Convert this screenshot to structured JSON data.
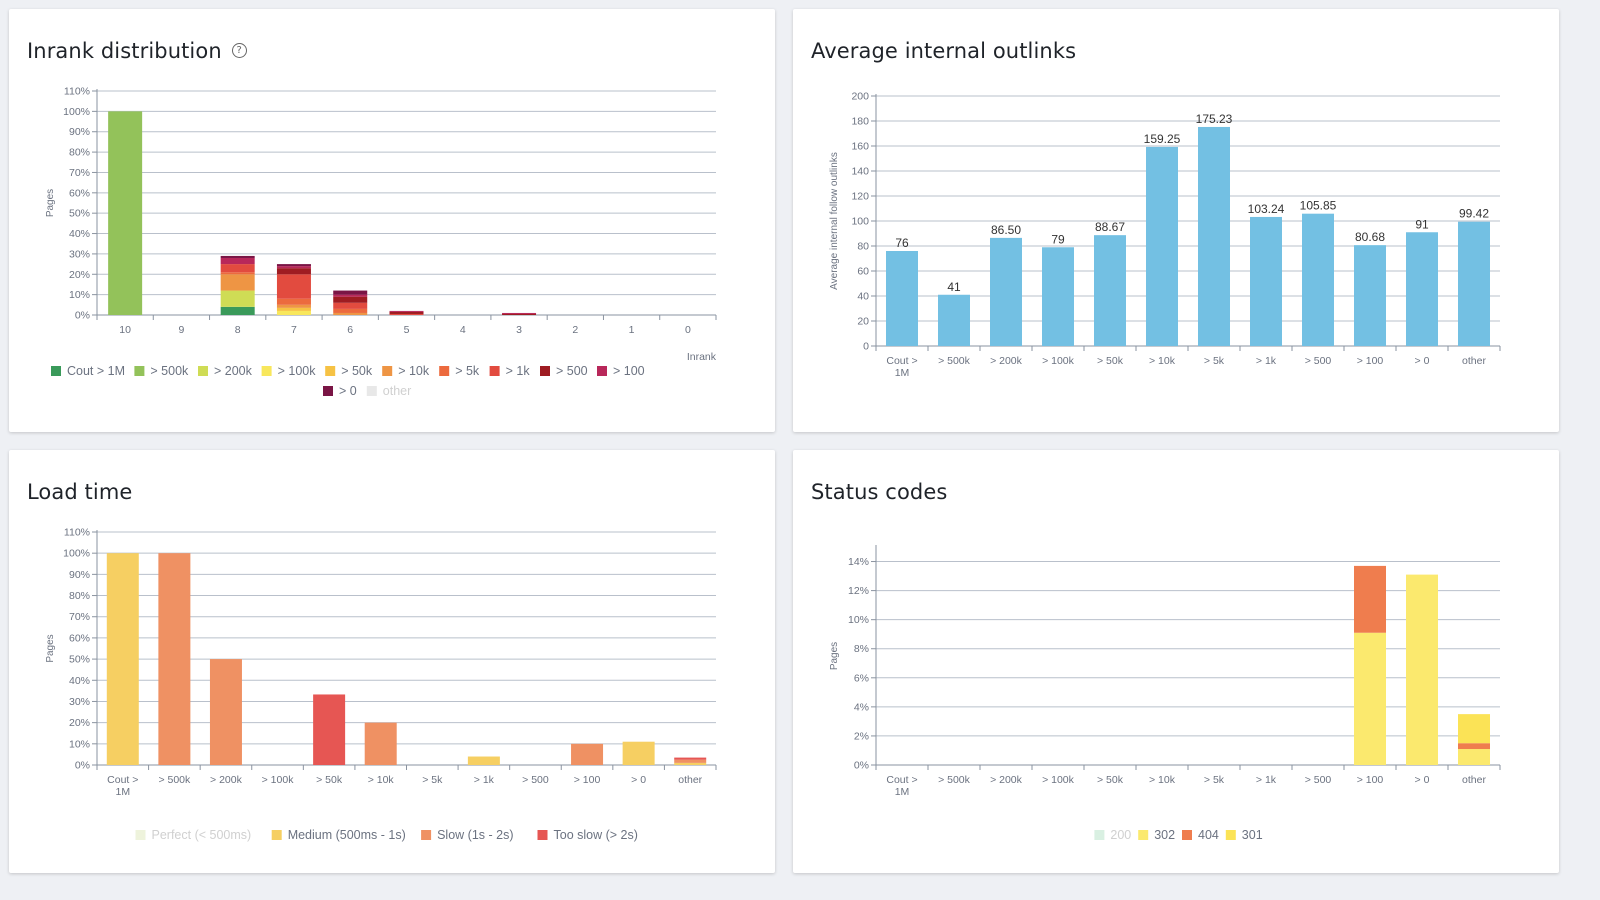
{
  "panels": {
    "inrank": {
      "title": "Inrank distribution",
      "help_icon": "help-circle-icon"
    },
    "outlinks": {
      "title": "Average internal outlinks"
    },
    "loadtime": {
      "title": "Load time"
    },
    "status": {
      "title": "Status codes"
    }
  },
  "chart_data": [
    {
      "id": "inrank",
      "type": "bar",
      "stacked": true,
      "title": "Inrank distribution",
      "xlabel": "Inrank",
      "ylabel": "Pages",
      "ylim": [
        0,
        110
      ],
      "y_ticks": [
        "0%",
        "10%",
        "20%",
        "30%",
        "40%",
        "50%",
        "60%",
        "70%",
        "80%",
        "90%",
        "100%",
        "110%"
      ],
      "grid": true,
      "legend_position": "bottom",
      "categories": [
        "10",
        "9",
        "8",
        "7",
        "6",
        "5",
        "4",
        "3",
        "2",
        "1",
        "0"
      ],
      "series": [
        {
          "name": "Cout > 1M",
          "color": "#3a9a5a",
          "values": [
            0,
            0,
            4,
            0,
            0,
            0,
            0,
            0,
            0,
            0,
            0
          ]
        },
        {
          "name": "> 500k",
          "color": "#93c25a",
          "values": [
            100,
            0,
            0,
            0,
            0,
            0,
            0,
            0,
            0,
            0,
            0
          ]
        },
        {
          "name": "> 200k",
          "color": "#cfdc55",
          "values": [
            0,
            0,
            8,
            0,
            0,
            0,
            0,
            0,
            0,
            0,
            0
          ]
        },
        {
          "name": "> 100k",
          "color": "#f8e75c",
          "values": [
            0,
            0,
            0,
            2,
            0,
            0,
            0,
            0,
            0,
            0,
            0
          ]
        },
        {
          "name": "> 50k",
          "color": "#f6c244",
          "values": [
            0,
            0,
            0,
            1.5,
            0,
            0,
            0,
            0,
            0,
            0,
            0
          ]
        },
        {
          "name": "> 10k",
          "color": "#ee9544",
          "values": [
            0,
            0,
            8,
            1.5,
            1,
            0,
            0,
            0,
            0,
            0,
            0
          ]
        },
        {
          "name": "> 5k",
          "color": "#ec6a3e",
          "values": [
            0,
            0,
            1,
            3,
            2,
            0,
            0,
            0,
            0,
            0,
            0
          ]
        },
        {
          "name": "> 1k",
          "color": "#e24b3f",
          "values": [
            0,
            0,
            4,
            12,
            3,
            0.5,
            0,
            0,
            0,
            0,
            0
          ]
        },
        {
          "name": "> 500",
          "color": "#9e1c22",
          "values": [
            0,
            0,
            0,
            3,
            3,
            1,
            0,
            0.5,
            0,
            0,
            0
          ]
        },
        {
          "name": "> 100",
          "color": "#b8285a",
          "values": [
            0,
            0,
            3,
            1,
            1,
            0.5,
            0,
            0.5,
            0,
            0,
            0
          ]
        },
        {
          "name": "> 0",
          "color": "#7a1545",
          "values": [
            0,
            0,
            1,
            1,
            2,
            0,
            0,
            0,
            0,
            0,
            0
          ]
        },
        {
          "name": "other",
          "color": "#e8e8e8",
          "values": [
            0,
            0,
            0,
            0,
            0,
            0,
            0,
            0,
            0,
            0,
            0
          ]
        }
      ]
    },
    {
      "id": "outlinks",
      "type": "bar",
      "title": "Average internal outlinks",
      "ylabel": "Average internal follow outlinks",
      "ylim": [
        0,
        200
      ],
      "y_ticks": [
        "0",
        "20",
        "40",
        "60",
        "80",
        "100",
        "120",
        "140",
        "160",
        "180",
        "200"
      ],
      "grid": true,
      "color": "#73c0e3",
      "categories": [
        "Cout >\n1M",
        "> 500k",
        "> 200k",
        "> 100k",
        "> 50k",
        "> 10k",
        "> 5k",
        "> 1k",
        "> 500",
        "> 100",
        "> 0",
        "other"
      ],
      "values": [
        76,
        41,
        86.5,
        79,
        88.67,
        159.25,
        175.23,
        103.24,
        105.85,
        80.68,
        91,
        99.42
      ],
      "data_labels": [
        "76",
        "41",
        "86.50",
        "79",
        "88.67",
        "159.25",
        "175.23",
        "103.24",
        "105.85",
        "80.68",
        "91",
        "99.42"
      ]
    },
    {
      "id": "loadtime",
      "type": "bar",
      "stacked": true,
      "title": "Load time",
      "ylabel": "Pages",
      "ylim": [
        0,
        110
      ],
      "y_ticks": [
        "0%",
        "10%",
        "20%",
        "30%",
        "40%",
        "50%",
        "60%",
        "70%",
        "80%",
        "90%",
        "100%",
        "110%"
      ],
      "grid": true,
      "legend_position": "bottom",
      "categories": [
        "Cout >\n1M",
        "> 500k",
        "> 200k",
        "> 100k",
        "> 50k",
        "> 10k",
        "> 5k",
        "> 1k",
        "> 500",
        "> 100",
        "> 0",
        "other"
      ],
      "series": [
        {
          "name": "Perfect (< 500ms)",
          "color": "#eef3dc",
          "values": [
            0,
            0,
            0,
            0,
            0,
            0,
            0,
            0,
            0,
            0,
            0,
            0
          ]
        },
        {
          "name": "Medium (500ms - 1s)",
          "color": "#f6cf62",
          "values": [
            100,
            0,
            0,
            0,
            0,
            0,
            0,
            4,
            0,
            0,
            11,
            1
          ]
        },
        {
          "name": "Slow (1s - 2s)",
          "color": "#ef9163",
          "values": [
            0,
            100,
            50,
            0,
            0,
            20,
            0,
            0,
            0,
            10,
            0,
            1.5
          ]
        },
        {
          "name": "Too slow (> 2s)",
          "color": "#e65653",
          "values": [
            0,
            0,
            0,
            0,
            33.3,
            0,
            0,
            0,
            0,
            0,
            0,
            1
          ]
        }
      ]
    },
    {
      "id": "status",
      "type": "bar",
      "stacked": true,
      "title": "Status codes",
      "ylabel": "Pages",
      "ylim": [
        0,
        15
      ],
      "y_ticks": [
        "0%",
        "2%",
        "4%",
        "6%",
        "8%",
        "10%",
        "12%",
        "14%"
      ],
      "grid": true,
      "legend_position": "bottom",
      "categories": [
        "Cout >\n1M",
        "> 500k",
        "> 200k",
        "> 100k",
        "> 50k",
        "> 10k",
        "> 5k",
        "> 1k",
        "> 500",
        "> 100",
        "> 0",
        "other"
      ],
      "series": [
        {
          "name": "200",
          "color": "#d9f0e2",
          "values": [
            0,
            0,
            0,
            0,
            0,
            0,
            0,
            0,
            0,
            0,
            0,
            0
          ]
        },
        {
          "name": "302",
          "color": "#fbe96e",
          "values": [
            0,
            0,
            0,
            0,
            0,
            0,
            0,
            0,
            0,
            9.1,
            13.1,
            1.1
          ]
        },
        {
          "name": "404",
          "color": "#ef7d4e",
          "values": [
            0,
            0,
            0,
            0,
            0,
            0,
            0,
            0,
            0,
            4.6,
            0,
            0.4
          ]
        },
        {
          "name": "301",
          "color": "#fbe356",
          "values": [
            0,
            0,
            0,
            0,
            0,
            0,
            0,
            0,
            0,
            0,
            0,
            2.0
          ]
        }
      ]
    }
  ],
  "legend_dim_color": "#d0d0d0",
  "legend_text_color": "#6b7280"
}
